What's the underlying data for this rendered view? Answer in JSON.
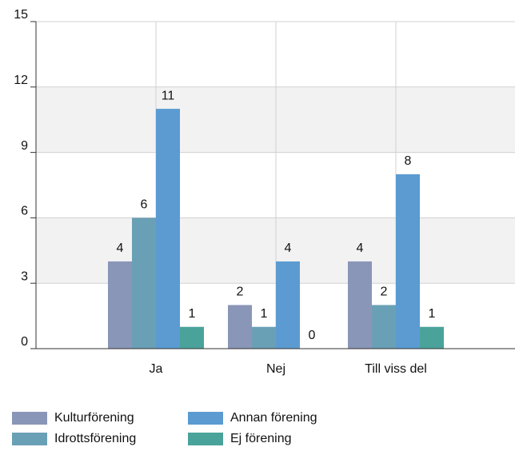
{
  "chart_data": {
    "type": "bar",
    "categories": [
      "Ja",
      "Nej",
      "Till viss del"
    ],
    "series": [
      {
        "name": "Kulturförening",
        "color": "#8a96b8",
        "values": [
          4,
          2,
          4
        ]
      },
      {
        "name": "Idrottsförening",
        "color": "#6aa0b5",
        "values": [
          6,
          1,
          2
        ]
      },
      {
        "name": "Annan förening",
        "color": "#5b9bd1",
        "values": [
          11,
          4,
          8
        ]
      },
      {
        "name": "Ej förening",
        "color": "#4aa39a",
        "values": [
          1,
          0,
          1
        ]
      }
    ],
    "ylim": [
      0,
      15
    ],
    "yticks": [
      0,
      3,
      6,
      9,
      12,
      15
    ],
    "grid": true
  }
}
